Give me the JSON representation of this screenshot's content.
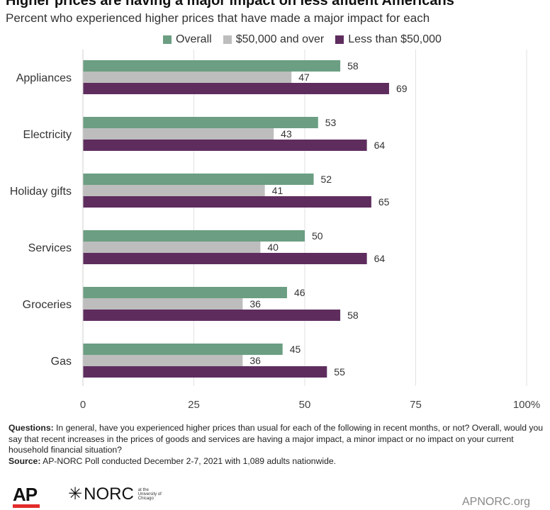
{
  "header": {
    "title": "Higher prices are having a major impact on less afluent Americans",
    "subtitle": "Percent who experienced higher prices that have made a major impact for each"
  },
  "chart_data": {
    "type": "bar",
    "orientation": "horizontal",
    "categories": [
      "Appliances",
      "Electricity",
      "Holiday gifts",
      "Services",
      "Groceries",
      "Gas"
    ],
    "series": [
      {
        "name": "Overall",
        "color": "#6b9e82",
        "values": [
          58,
          53,
          52,
          50,
          46,
          45
        ]
      },
      {
        "name": "$50,000 and over",
        "color": "#bdbdbd",
        "values": [
          47,
          43,
          41,
          40,
          36,
          36
        ]
      },
      {
        "name": "Less than $50,000",
        "color": "#5e2d5e",
        "values": [
          69,
          64,
          65,
          64,
          58,
          55
        ]
      }
    ],
    "x_ticks": [
      "0",
      "25",
      "50",
      "75",
      "100%"
    ],
    "xlim": [
      0,
      100
    ],
    "grid": true,
    "legend": "top"
  },
  "notes": {
    "questions_label": "Questions:",
    "questions_text": "In general, have you experienced higher prices than usual for each of the following in recent months, or not? Overall, would you say that recent increases in the prices of goods and services are having a major impact, a minor impact or no impact on your current household financial situation?",
    "source_label": "Source:",
    "source_text": "AP-NORC Poll conducted December 2-7, 2021 with 1,089 adults nationwide."
  },
  "footer": {
    "ap_logo": "AP",
    "norc_logo": "NORC",
    "norc_sub": "at the University of Chicago",
    "site": "APNORC.org"
  }
}
